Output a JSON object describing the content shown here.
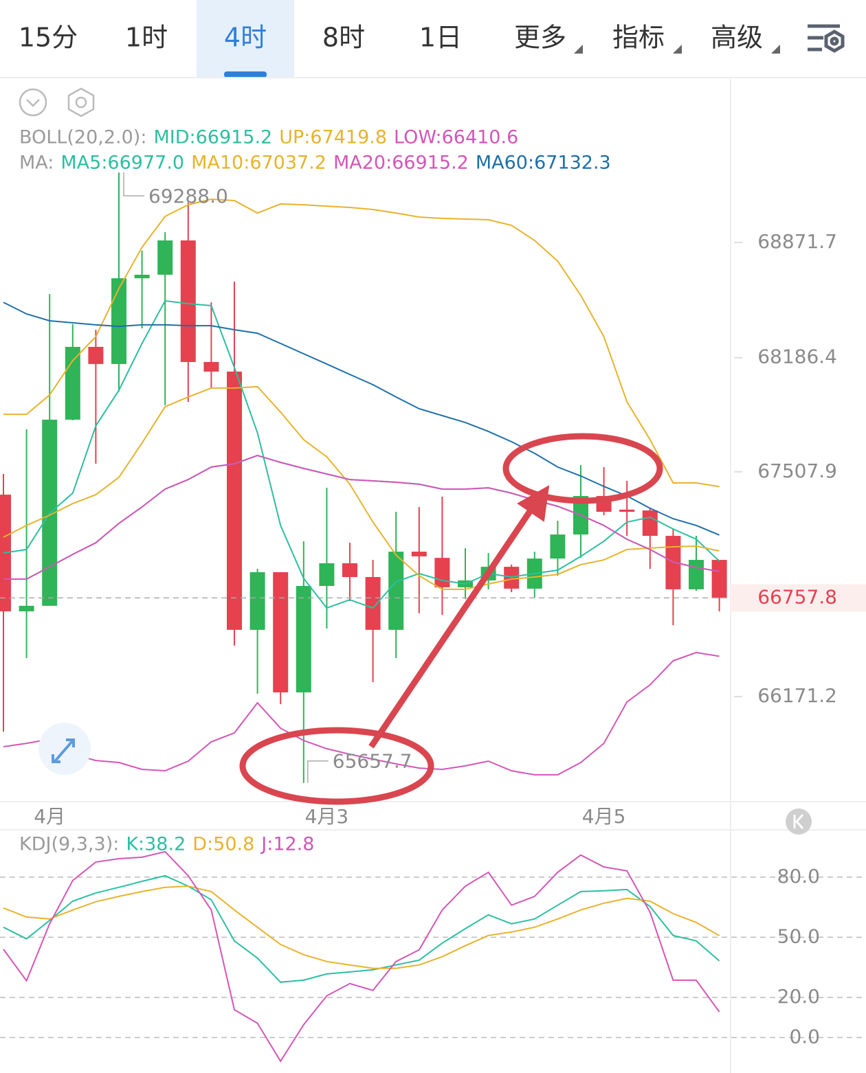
{
  "tabs": [
    "15分",
    "1时",
    "4时",
    "8时",
    "1日",
    "更多",
    "指标",
    "高级"
  ],
  "selected_tab": "4时",
  "chart_data": [
    {
      "type": "candlestick",
      "boll_title": "BOLL(20,2.0):",
      "ma_title": "MA:",
      "up_color": "#2fb457",
      "down_color": "#e5414f",
      "categories": [
        null,
        null,
        "4月",
        null,
        null,
        null,
        null,
        null,
        null,
        null,
        null,
        null,
        null,
        null,
        "4月3",
        null,
        null,
        null,
        null,
        null,
        null,
        null,
        null,
        null,
        null,
        null,
        "4月5",
        null,
        null,
        null,
        null,
        null
      ],
      "open": [
        67372,
        66678,
        66711,
        67818,
        68251,
        68149,
        68659,
        68680,
        68884,
        68161,
        68104,
        66568,
        66911,
        66196,
        66829,
        66964,
        66882,
        66568,
        67033,
        66996,
        66821,
        66862,
        66943,
        66813,
        66992,
        67135,
        67364,
        67283,
        67278,
        67127,
        66809,
        66984
      ],
      "high": [
        67495,
        67761,
        68565,
        68386,
        68353,
        69288.0,
        68823,
        68933,
        69109,
        68516,
        68639,
        66931,
        66911,
        67095,
        67413,
        67086,
        66984,
        67270,
        67299,
        67360,
        67054,
        67025,
        66956,
        67033,
        67217,
        67548,
        67536,
        67454,
        67291,
        67168,
        67127,
        66984
      ],
      "low": [
        65963,
        66400,
        66711,
        67814,
        67556,
        67985,
        68361,
        67904,
        67924,
        68006,
        66474,
        66188,
        66126,
        65657.7,
        66576,
        66739,
        66257,
        66400,
        66666,
        66657,
        66751,
        66809,
        66792,
        66760,
        66890,
        66996,
        67250,
        67127,
        66931,
        66596,
        66800,
        66678
      ],
      "close": [
        66678,
        66711,
        67818,
        68251,
        68149,
        68659,
        68680,
        68884,
        68161,
        68104,
        66568,
        66911,
        66196,
        66829,
        66964,
        66882,
        66568,
        67033,
        67005,
        66821,
        66862,
        66943,
        66813,
        66992,
        67135,
        67364,
        67270,
        67270,
        67127,
        66809,
        66984,
        66757.8
      ],
      "boll": [
        {
          "legend": "MID:66915.2",
          "color": "#2bbfa0",
          "values": [
            66870,
            66870,
            66943,
            67017,
            67086,
            67201,
            67299,
            67405,
            67462,
            67536,
            67556,
            67605,
            67564,
            67528,
            67495,
            67462,
            67454,
            67446,
            67434,
            67405,
            67405,
            67413,
            67381,
            67340,
            67303,
            67250,
            67189,
            67107,
            67046,
            66972,
            66939,
            66915.2
          ]
        },
        {
          "legend": "UP:67419.8",
          "color": "#e8b32a",
          "values": [
            67850,
            67850,
            67965,
            68169,
            68312,
            68598,
            68843,
            69027,
            69096,
            69129,
            69121,
            69047,
            69101,
            69096,
            69088,
            69080,
            69068,
            69047,
            69023,
            69015,
            69011,
            69007,
            68974,
            68884,
            68761,
            68557,
            68312,
            67924,
            67699,
            67442,
            67442,
            67419.8
          ]
        },
        {
          "legend": "LOW:66410.6",
          "color": "#d455b8",
          "values": [
            65873,
            65893,
            65918,
            65828,
            65791,
            65779,
            65738,
            65730,
            65787,
            65902,
            65955,
            66134,
            65983,
            65910,
            65861,
            65828,
            65799,
            65771,
            65746,
            65738,
            65759,
            65787,
            65730,
            65706,
            65706,
            65779,
            65893,
            66139,
            66241,
            66384,
            66433,
            66410.6
          ]
        }
      ],
      "ma": [
        {
          "legend": "MA5:66977.0",
          "color": "#2bbfa0",
          "values": [
            67025,
            67046,
            67262,
            67381,
            67781,
            67993,
            68271,
            68525,
            68508,
            68496,
            68128,
            67740,
            67189,
            66874,
            66698,
            66747,
            66698,
            66854,
            66903,
            66862,
            66841,
            66903,
            66882,
            66903,
            66923,
            67005,
            67095,
            67209,
            67238,
            67168,
            67107,
            66977.0
          ]
        },
        {
          "legend": "MA10:67037.2",
          "color": "#e8b32a",
          "values": [
            67119,
            67189,
            67250,
            67319,
            67372,
            67475,
            67679,
            67895,
            67953,
            68006,
            68006,
            68014,
            67863,
            67699,
            67597,
            67434,
            67209,
            67013,
            66890,
            66809,
            66809,
            66841,
            66870,
            66882,
            66898,
            66956,
            66984,
            67046,
            67054,
            67062,
            67066,
            67037.2
          ]
        },
        {
          "legend": "MA20:66915.2",
          "color": "#d455b8",
          "values": [
            66870,
            66870,
            66943,
            67017,
            67086,
            67201,
            67299,
            67405,
            67462,
            67536,
            67556,
            67605,
            67564,
            67528,
            67495,
            67462,
            67454,
            67446,
            67434,
            67405,
            67405,
            67413,
            67381,
            67340,
            67303,
            67250,
            67189,
            67107,
            67046,
            66972,
            66939,
            66915.2
          ]
        },
        {
          "legend": "MA60:67132.3",
          "color": "#1e6fa8",
          "values": [
            68516,
            68447,
            68406,
            68394,
            68382,
            68373,
            68382,
            68382,
            68377,
            68377,
            68353,
            68332,
            68271,
            68210,
            68149,
            68087,
            68026,
            67953,
            67883,
            67842,
            67801,
            67748,
            67687,
            67618,
            67536,
            67483,
            67421,
            67364,
            67291,
            67229,
            67189,
            67132.3
          ]
        }
      ],
      "ylim": [
        65554.3,
        69844.1
      ],
      "yticks": [
        68871.7,
        68186.4,
        67507.9,
        66171.2
      ],
      "last_price": 66757.8,
      "high_label": "69288.0",
      "low_label": "65657.7"
    },
    {
      "type": "line",
      "title": "KDJ(9,3,3):",
      "grid": true,
      "series": [
        {
          "legend": "K:38.2",
          "color": "#2bbfa0",
          "values": [
            55.0,
            49.2,
            58.4,
            68.0,
            72.1,
            74.9,
            77.9,
            80.7,
            75.5,
            68.7,
            48.2,
            39.6,
            27.6,
            28.6,
            31.7,
            32.7,
            33.8,
            36.2,
            38.6,
            47.1,
            54.3,
            61.2,
            56.7,
            59.1,
            66.0,
            72.8,
            73.2,
            73.8,
            65.3,
            50.9,
            48.2,
            38.2
          ]
        },
        {
          "legend": "D:50.8",
          "color": "#e8b32a",
          "values": [
            64.6,
            60.1,
            59.1,
            63.6,
            67.7,
            70.4,
            72.8,
            74.9,
            75.5,
            72.8,
            63.6,
            55.0,
            46.4,
            41.3,
            37.9,
            36.2,
            34.5,
            34.5,
            36.2,
            40.3,
            45.8,
            50.9,
            52.6,
            55.0,
            59.1,
            63.6,
            67.0,
            69.4,
            68.0,
            61.8,
            57.4,
            50.8
          ]
        },
        {
          "legend": "J:12.8",
          "color": "#d455b8",
          "values": [
            44.0,
            28.3,
            56.7,
            78.3,
            87.5,
            89.2,
            89.9,
            92.7,
            80.7,
            63.6,
            13.9,
            7.1,
            -11.8,
            6.4,
            20.8,
            26.9,
            23.5,
            37.9,
            43.7,
            63.6,
            75.5,
            82.4,
            66.0,
            70.4,
            82.4,
            91.0,
            85.1,
            83.1,
            62.5,
            28.6,
            28.6,
            12.8
          ]
        }
      ],
      "ylim": [
        -17.7,
        102.9
      ],
      "yticks": [
        {
          "value": 80,
          "label": "80.0"
        },
        {
          "value": 50,
          "label": "50.0"
        },
        {
          "value": 20,
          "label": "20.0"
        },
        {
          "value": 0,
          "label": "0.0"
        }
      ]
    }
  ]
}
